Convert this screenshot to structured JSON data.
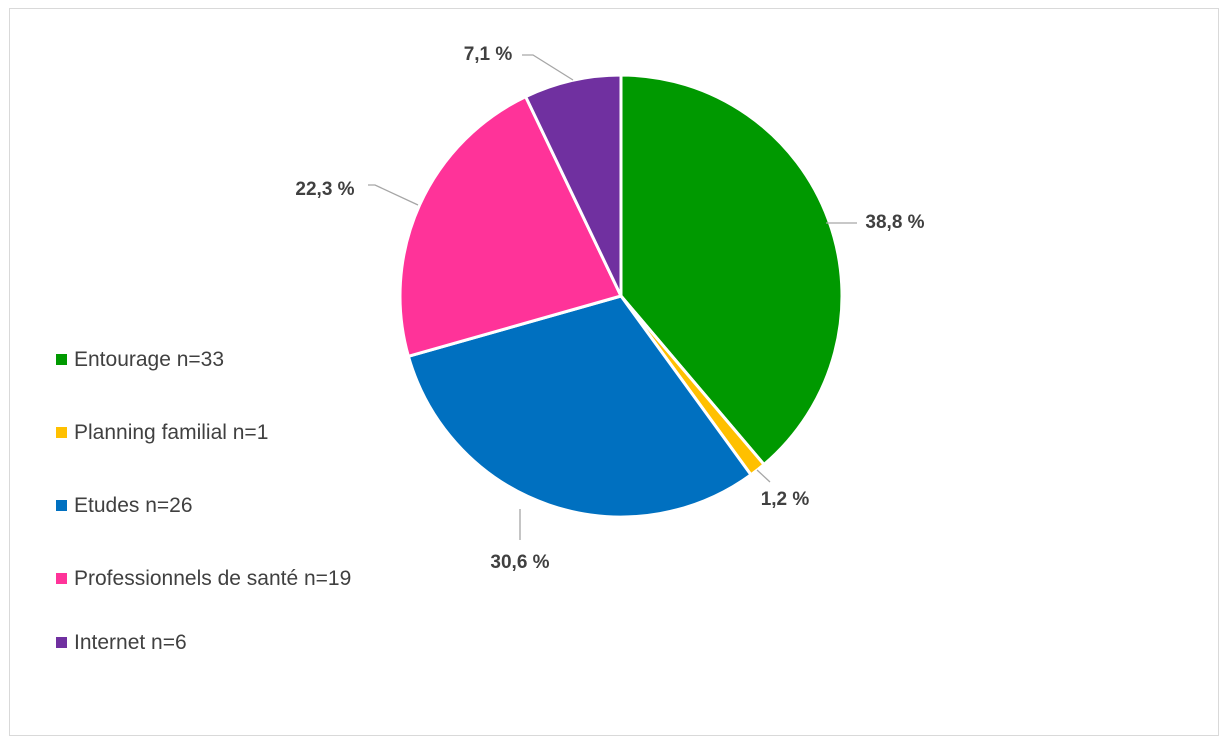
{
  "chart_data": {
    "type": "pie",
    "title": "",
    "start_angle_deg": 0,
    "direction": "clockwise",
    "slices": [
      {
        "label": "Entourage n=33",
        "value": 38.8,
        "value_label": "38,8 %",
        "color": "#009900"
      },
      {
        "label": "Planning familial n=1",
        "value": 1.2,
        "value_label": "1,2 %",
        "color": "#FFC000"
      },
      {
        "label": "Etudes n=26",
        "value": 30.6,
        "value_label": "30,6 %",
        "color": "#0070C0"
      },
      {
        "label": "Professionnels de santé n=19",
        "value": 22.3,
        "value_label": "22,3 %",
        "color": "#FF3399"
      },
      {
        "label": "Internet n=6",
        "value": 7.1,
        "value_label": "7,1 %",
        "color": "#7030A0"
      }
    ],
    "legend_position": "left"
  }
}
